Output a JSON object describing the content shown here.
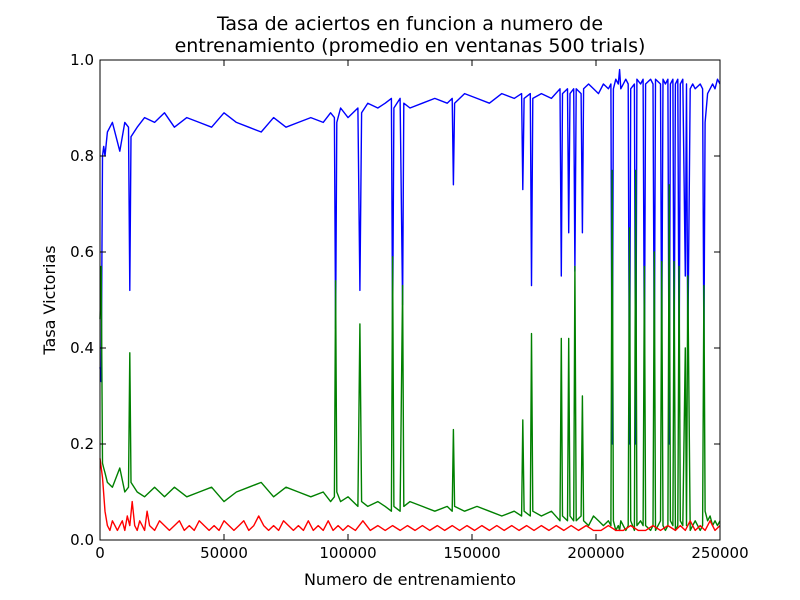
{
  "chart_data": {
    "type": "line",
    "title_line1": "Tasa de aciertos en funcion a numero de",
    "title_line2": "entrenamiento (promedio en ventanas 500 trials)",
    "xlabel": "Numero de entrenamiento",
    "ylabel": "Tasa Victorias",
    "xlim": [
      0,
      250000
    ],
    "ylim": [
      0.0,
      1.0
    ],
    "xticks": [
      0,
      50000,
      100000,
      150000,
      200000,
      250000
    ],
    "xtick_labels": [
      "0",
      "50000",
      "100000",
      "150000",
      "200000",
      "250000"
    ],
    "yticks": [
      0.0,
      0.2,
      0.4,
      0.6,
      0.8,
      1.0
    ],
    "ytick_labels": [
      "0.0",
      "0.2",
      "0.4",
      "0.6",
      "0.8",
      "1.0"
    ],
    "grid": false,
    "series": [
      {
        "color": "#0000ff",
        "x": [
          0,
          500,
          1000,
          1500,
          2000,
          3000,
          5000,
          8000,
          10000,
          11500,
          12000,
          12500,
          15000,
          18000,
          22000,
          26000,
          30000,
          35000,
          40000,
          45000,
          50000,
          55000,
          60000,
          65000,
          70000,
          75000,
          80000,
          85000,
          90000,
          93000,
          94500,
          95000,
          95500,
          97000,
          100000,
          104000,
          104800,
          105500,
          108000,
          112000,
          115000,
          117500,
          118000,
          118500,
          121000,
          122000,
          122500,
          125000,
          130000,
          135000,
          140000,
          142000,
          142500,
          143000,
          147000,
          152000,
          157000,
          162000,
          167000,
          170000,
          170500,
          171000,
          173500,
          174000,
          174500,
          178000,
          182000,
          185500,
          186000,
          186500,
          188500,
          189000,
          189500,
          191000,
          191500,
          192000,
          194000,
          194500,
          195000,
          197000,
          199000,
          201000,
          203000,
          205000,
          206000,
          206500,
          207000,
          208000,
          209000,
          209500,
          210000,
          212000,
          213000,
          213500,
          214000,
          215500,
          216000,
          216500,
          218000,
          219000,
          219500,
          220000,
          222000,
          223000,
          223500,
          224000,
          226000,
          226500,
          227000,
          228000,
          229000,
          229500,
          230000,
          231000,
          231500,
          232000,
          233000,
          233500,
          234000,
          235000,
          236000,
          236500,
          237000,
          238000,
          239000,
          240000,
          242000,
          243000,
          243500,
          244000,
          245000,
          246000,
          247000,
          248000,
          249000,
          250000
        ],
        "y": [
          0.36,
          0.33,
          0.8,
          0.82,
          0.8,
          0.85,
          0.87,
          0.81,
          0.87,
          0.86,
          0.52,
          0.84,
          0.86,
          0.88,
          0.87,
          0.89,
          0.86,
          0.88,
          0.87,
          0.86,
          0.89,
          0.87,
          0.86,
          0.85,
          0.88,
          0.86,
          0.87,
          0.88,
          0.87,
          0.89,
          0.88,
          0.44,
          0.87,
          0.9,
          0.88,
          0.9,
          0.52,
          0.89,
          0.91,
          0.9,
          0.91,
          0.92,
          0.44,
          0.9,
          0.92,
          0.49,
          0.91,
          0.9,
          0.91,
          0.92,
          0.91,
          0.92,
          0.74,
          0.91,
          0.93,
          0.92,
          0.91,
          0.93,
          0.92,
          0.93,
          0.73,
          0.92,
          0.93,
          0.53,
          0.92,
          0.93,
          0.92,
          0.94,
          0.55,
          0.93,
          0.94,
          0.64,
          0.93,
          0.94,
          0.56,
          0.94,
          0.93,
          0.64,
          0.94,
          0.95,
          0.94,
          0.93,
          0.95,
          0.94,
          0.95,
          0.2,
          0.94,
          0.96,
          0.95,
          0.98,
          0.94,
          0.96,
          0.95,
          0.2,
          0.94,
          0.95,
          0.2,
          0.96,
          0.95,
          0.96,
          0.36,
          0.95,
          0.96,
          0.95,
          0.36,
          0.96,
          0.95,
          0.38,
          0.96,
          0.95,
          0.96,
          0.2,
          0.95,
          0.96,
          0.35,
          0.95,
          0.96,
          0.34,
          0.95,
          0.96,
          0.55,
          0.95,
          0.4,
          0.94,
          0.95,
          0.94,
          0.95,
          0.94,
          0.4,
          0.87,
          0.93,
          0.94,
          0.95,
          0.94,
          0.96,
          0.95
        ]
      },
      {
        "color": "#008000",
        "x": [
          0,
          500,
          1000,
          1500,
          2000,
          3000,
          5000,
          8000,
          10000,
          11500,
          12000,
          12500,
          15000,
          18000,
          22000,
          26000,
          30000,
          35000,
          40000,
          45000,
          50000,
          55000,
          60000,
          65000,
          70000,
          75000,
          80000,
          85000,
          90000,
          93000,
          94500,
          95000,
          95500,
          97000,
          100000,
          104000,
          104800,
          105500,
          108000,
          112000,
          115000,
          117500,
          118000,
          118500,
          121000,
          122000,
          122500,
          125000,
          130000,
          135000,
          140000,
          142000,
          142500,
          143000,
          147000,
          152000,
          157000,
          162000,
          167000,
          170000,
          170500,
          171000,
          173500,
          174000,
          174500,
          178000,
          182000,
          185500,
          186000,
          186500,
          188500,
          189000,
          189500,
          191000,
          191500,
          192000,
          194000,
          194500,
          195000,
          197000,
          199000,
          201000,
          203000,
          205000,
          206000,
          206500,
          207000,
          208000,
          209000,
          209500,
          210000,
          212000,
          213000,
          213500,
          214000,
          215500,
          216000,
          216500,
          218000,
          219000,
          219500,
          220000,
          222000,
          223000,
          223500,
          224000,
          226000,
          226500,
          227000,
          228000,
          229000,
          229500,
          230000,
          231000,
          231500,
          232000,
          233000,
          233500,
          234000,
          235000,
          236000,
          236500,
          237000,
          238000,
          239000,
          240000,
          242000,
          243000,
          243500,
          244000,
          245000,
          246000,
          247000,
          248000,
          249000,
          250000
        ],
        "y": [
          0.46,
          0.57,
          0.16,
          0.15,
          0.14,
          0.12,
          0.11,
          0.15,
          0.1,
          0.11,
          0.39,
          0.12,
          0.1,
          0.09,
          0.11,
          0.09,
          0.11,
          0.09,
          0.1,
          0.11,
          0.08,
          0.1,
          0.11,
          0.12,
          0.09,
          0.11,
          0.1,
          0.09,
          0.1,
          0.08,
          0.09,
          0.54,
          0.1,
          0.08,
          0.09,
          0.07,
          0.45,
          0.08,
          0.07,
          0.08,
          0.07,
          0.06,
          0.59,
          0.07,
          0.06,
          0.53,
          0.07,
          0.08,
          0.07,
          0.06,
          0.07,
          0.06,
          0.23,
          0.07,
          0.06,
          0.07,
          0.06,
          0.05,
          0.06,
          0.05,
          0.25,
          0.06,
          0.05,
          0.43,
          0.06,
          0.05,
          0.06,
          0.04,
          0.42,
          0.05,
          0.04,
          0.42,
          0.05,
          0.04,
          0.57,
          0.04,
          0.05,
          0.3,
          0.04,
          0.03,
          0.05,
          0.04,
          0.03,
          0.04,
          0.03,
          0.77,
          0.04,
          0.02,
          0.03,
          0.02,
          0.04,
          0.02,
          0.03,
          0.65,
          0.04,
          0.02,
          0.77,
          0.03,
          0.04,
          0.03,
          0.57,
          0.03,
          0.02,
          0.03,
          0.6,
          0.02,
          0.04,
          0.58,
          0.03,
          0.02,
          0.03,
          0.74,
          0.04,
          0.03,
          0.58,
          0.02,
          0.03,
          0.57,
          0.04,
          0.03,
          0.4,
          0.03,
          0.55,
          0.02,
          0.03,
          0.04,
          0.02,
          0.03,
          0.53,
          0.06,
          0.04,
          0.05,
          0.03,
          0.04,
          0.03,
          0.04
        ]
      },
      {
        "color": "#ff0000",
        "x": [
          0,
          1000,
          2000,
          3000,
          4000,
          5000,
          6000,
          7000,
          8000,
          9000,
          10000,
          11000,
          12000,
          13000,
          14000,
          15000,
          16000,
          17000,
          18000,
          19000,
          20000,
          22000,
          24000,
          26000,
          28000,
          30000,
          32000,
          34000,
          36000,
          38000,
          40000,
          42000,
          44000,
          46000,
          48000,
          50000,
          52000,
          54000,
          56000,
          58000,
          60000,
          62000,
          64000,
          66000,
          68000,
          70000,
          72000,
          74000,
          76000,
          78000,
          80000,
          82000,
          84000,
          86000,
          88000,
          90000,
          92000,
          94000,
          96000,
          98000,
          100000,
          103000,
          106000,
          109000,
          112000,
          115000,
          118000,
          121000,
          124000,
          127000,
          130000,
          133000,
          136000,
          139000,
          142000,
          145000,
          148000,
          151000,
          154000,
          157000,
          160000,
          163000,
          166000,
          169000,
          172000,
          175000,
          178000,
          181000,
          184000,
          187000,
          190000,
          193000,
          196000,
          199000,
          202000,
          205000,
          208000,
          211000,
          214000,
          217000,
          220000,
          223000,
          226000,
          229000,
          232000,
          234000,
          236000,
          238000,
          240000,
          242000,
          244000,
          246000,
          248000,
          250000
        ],
        "y": [
          0.17,
          0.13,
          0.06,
          0.03,
          0.02,
          0.04,
          0.03,
          0.02,
          0.03,
          0.04,
          0.02,
          0.05,
          0.03,
          0.08,
          0.03,
          0.02,
          0.04,
          0.03,
          0.02,
          0.06,
          0.03,
          0.02,
          0.04,
          0.03,
          0.02,
          0.03,
          0.04,
          0.02,
          0.03,
          0.02,
          0.04,
          0.03,
          0.02,
          0.03,
          0.02,
          0.04,
          0.03,
          0.02,
          0.03,
          0.04,
          0.02,
          0.03,
          0.05,
          0.03,
          0.02,
          0.03,
          0.02,
          0.04,
          0.03,
          0.02,
          0.03,
          0.02,
          0.04,
          0.02,
          0.03,
          0.02,
          0.04,
          0.02,
          0.03,
          0.02,
          0.03,
          0.02,
          0.04,
          0.02,
          0.03,
          0.02,
          0.03,
          0.02,
          0.03,
          0.02,
          0.03,
          0.02,
          0.03,
          0.02,
          0.03,
          0.02,
          0.03,
          0.02,
          0.03,
          0.02,
          0.03,
          0.02,
          0.03,
          0.02,
          0.03,
          0.02,
          0.03,
          0.02,
          0.03,
          0.02,
          0.03,
          0.02,
          0.03,
          0.02,
          0.02,
          0.03,
          0.02,
          0.02,
          0.03,
          0.02,
          0.02,
          0.03,
          0.02,
          0.03,
          0.02,
          0.03,
          0.02,
          0.04,
          0.02,
          0.03,
          0.02,
          0.04,
          0.02,
          0.03
        ]
      }
    ]
  }
}
